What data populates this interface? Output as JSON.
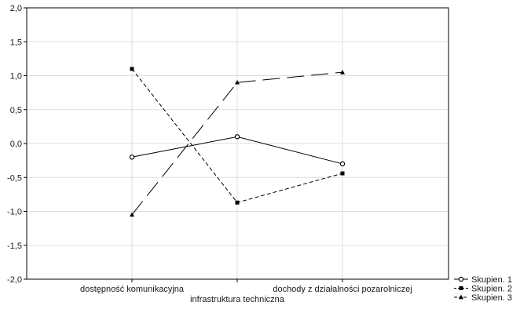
{
  "chart_data": {
    "type": "line",
    "categories": [
      "dostępność komunikacyjna",
      "infrastruktura techniczna",
      "dochody z działalności pozarolniczej"
    ],
    "ylim": [
      -2.0,
      2.0
    ],
    "yticks": [
      "-2,0",
      "-1,5",
      "-1,0",
      "-0,5",
      "0,0",
      "0,5",
      "1,0",
      "1,5",
      "2,0"
    ],
    "ytick_values": [
      -2.0,
      -1.5,
      -1.0,
      -0.5,
      0.0,
      0.5,
      1.0,
      1.5,
      2.0
    ],
    "grid": true,
    "legend_position": "bottom-right",
    "series": [
      {
        "name": "Skupien. 1",
        "values": [
          -0.2,
          0.1,
          -0.3
        ],
        "marker": "circle",
        "dash": "solid",
        "color": "#000000"
      },
      {
        "name": "Skupien. 2",
        "values": [
          1.1,
          -0.87,
          -0.44
        ],
        "marker": "square",
        "dash": "dashed",
        "color": "#000000"
      },
      {
        "name": "Skupien. 3",
        "values": [
          -1.05,
          0.9,
          1.05
        ],
        "marker": "triangle",
        "dash": "longdash",
        "color": "#000000"
      }
    ]
  }
}
